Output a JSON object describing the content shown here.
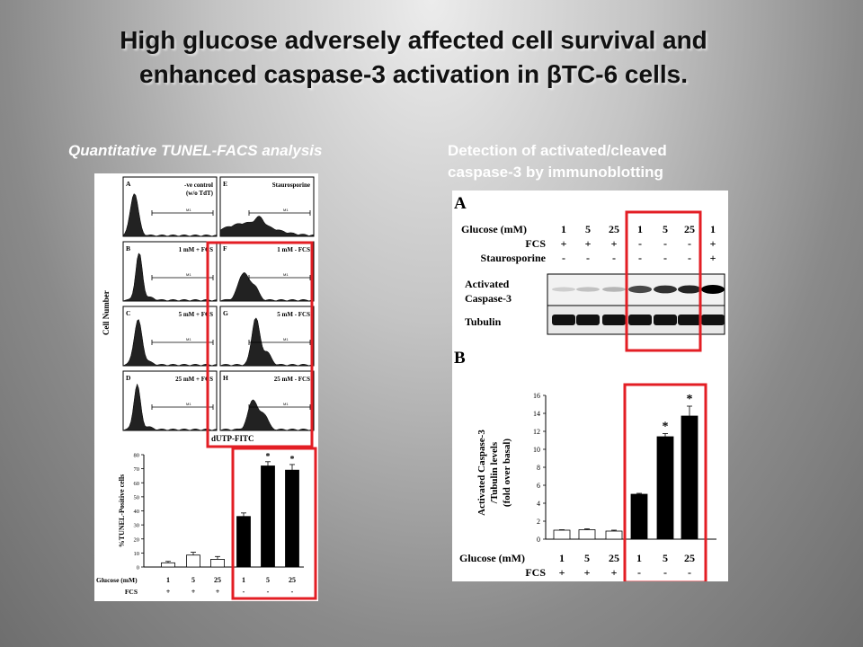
{
  "slide": {
    "title_line1": "High glucose adversely affected cell survival and",
    "title_line2": "enhanced caspase-3 activation in βTC-6 cells.",
    "subtitle_left": "Quantitative TUNEL-FACS analysis",
    "subtitle_right_line1": "Detection of activated/cleaved",
    "subtitle_right_line2": "caspase-3 by immunoblotting",
    "highlight_color": "#e31e24"
  },
  "facs": {
    "y_label": "Cell Number",
    "x_label": "dUTP-FITC",
    "panels": [
      {
        "letter": "A",
        "label1": "-ve control",
        "label2": "(w/o TdT)"
      },
      {
        "letter": "E",
        "label1": "Staurosporine",
        "label2": ""
      },
      {
        "letter": "B",
        "label1": "1 mM + FCS",
        "label2": ""
      },
      {
        "letter": "F",
        "label1": "1 mM - FCS",
        "label2": ""
      },
      {
        "letter": "C",
        "label1": "5 mM + FCS",
        "label2": ""
      },
      {
        "letter": "G",
        "label1": "5 mM - FCS",
        "label2": ""
      },
      {
        "letter": "D",
        "label1": "25 mM + FCS",
        "label2": ""
      },
      {
        "letter": "H",
        "label1": "25 mM - FCS",
        "label2": ""
      }
    ],
    "gate_label": "M1"
  },
  "tunel_bar": {
    "chart_data": {
      "type": "bar",
      "ylabel": "%TUNEL-Positive cells",
      "ylim": [
        0,
        80
      ],
      "yticks": [
        "0",
        "10",
        "20",
        "30",
        "40",
        "50",
        "60",
        "70",
        "80"
      ],
      "values": [
        3,
        8.5,
        5.5,
        36,
        72,
        69
      ],
      "errors": [
        1,
        2,
        2,
        2.5,
        3,
        4
      ],
      "fill": [
        "white",
        "white",
        "white",
        "black",
        "black",
        "black"
      ],
      "significant": [
        false,
        false,
        false,
        false,
        true,
        true
      ],
      "star": "*",
      "row1_label": "Glucose (mM)",
      "row1": [
        "1",
        "5",
        "25",
        "1",
        "5",
        "25"
      ],
      "row2_label": "FCS",
      "row2": [
        "+",
        "+",
        "+",
        "-",
        "-",
        "-"
      ]
    }
  },
  "blot": {
    "panel_letter": "A",
    "row_labels": {
      "glucose": "Glucose (mM)",
      "fcs": "FCS",
      "stauro": "Staurosporine"
    },
    "glucose": [
      "1",
      "5",
      "25",
      "1",
      "5",
      "25",
      "1"
    ],
    "fcs": [
      "+",
      "+",
      "+",
      "-",
      "-",
      "-",
      "+"
    ],
    "stauro": [
      "-",
      "-",
      "-",
      "-",
      "-",
      "-",
      "+"
    ],
    "band1_label1": "Activated",
    "band1_label2": "Caspase-3",
    "band2_label": "Tubulin"
  },
  "caspase_bar": {
    "panel_letter": "B",
    "chart_data": {
      "type": "bar",
      "ylabel_lines": [
        "Activated Caspase-3",
        "/Tubulin levels",
        "(fold over basal)"
      ],
      "ylim": [
        0,
        16
      ],
      "yticks": [
        "0",
        "2",
        "4",
        "6",
        "8",
        "10",
        "12",
        "14",
        "16"
      ],
      "values": [
        1.0,
        1.05,
        0.9,
        5.0,
        11.4,
        13.7
      ],
      "errors": [
        0.05,
        0.1,
        0.1,
        0.1,
        0.35,
        1.1
      ],
      "fill": [
        "white",
        "white",
        "white",
        "black",
        "black",
        "black"
      ],
      "significant": [
        false,
        false,
        false,
        false,
        true,
        true
      ],
      "star": "*",
      "row1_label": "Glucose (mM)",
      "row1": [
        "1",
        "5",
        "25",
        "1",
        "5",
        "25"
      ],
      "row2_label": "FCS",
      "row2": [
        "+",
        "+",
        "+",
        "-",
        "-",
        "-"
      ]
    }
  }
}
